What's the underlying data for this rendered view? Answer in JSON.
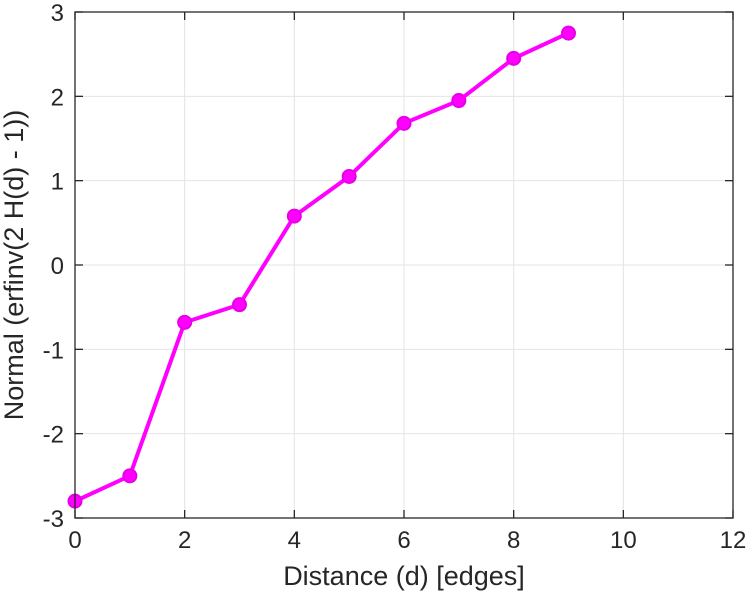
{
  "chart_data": {
    "type": "line",
    "xlabel": "Distance (d) [edges]",
    "ylabel": "Normal (erfinv(2 H(d) - 1))",
    "x": [
      0,
      1,
      2,
      3,
      4,
      5,
      6,
      7,
      8,
      9
    ],
    "y": [
      -2.8,
      -2.5,
      -0.68,
      -0.47,
      0.58,
      1.05,
      1.68,
      1.95,
      2.45,
      2.75
    ],
    "xlim": [
      0,
      12
    ],
    "ylim": [
      -3,
      3
    ],
    "xticks": [
      0,
      2,
      4,
      6,
      8,
      10,
      12
    ],
    "yticks": [
      -3,
      -2,
      -1,
      0,
      1,
      2,
      3
    ],
    "grid": true,
    "series_color": "#FF00FF",
    "marker": "circle",
    "marker_edge_color": "#E600E6",
    "axis_color": "#262626",
    "grid_color": "#E4E4E4"
  }
}
